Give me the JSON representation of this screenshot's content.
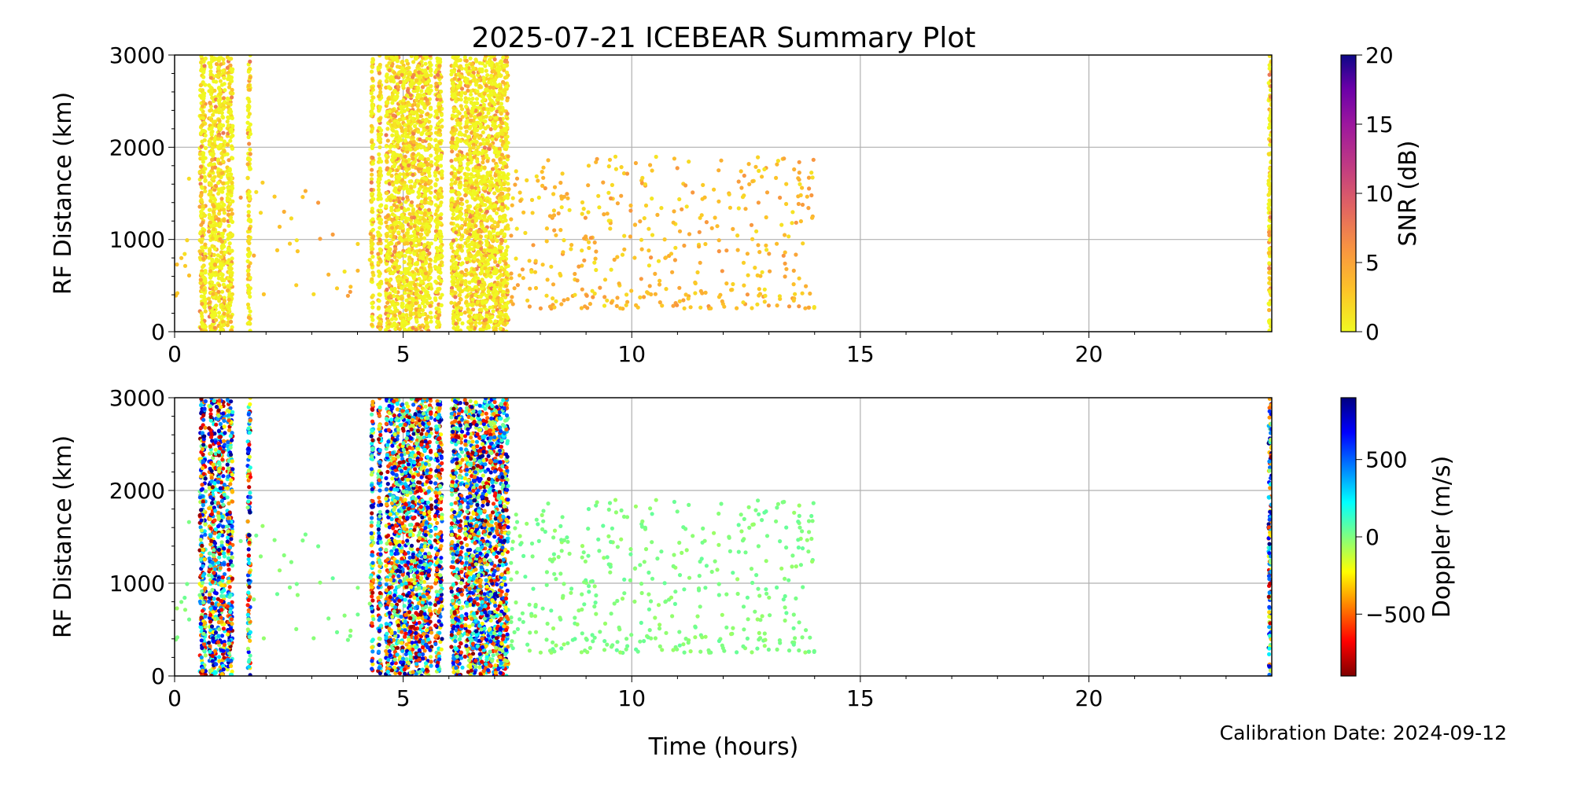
{
  "chart_data": [
    {
      "type": "scatter",
      "title": "2025-07-21 ICEBEAR Summary Plot",
      "xlabel": "",
      "ylabel": "RF Distance (km)",
      "xlim": [
        0,
        24
      ],
      "ylim": [
        0,
        3000
      ],
      "xticks": [
        "0",
        "5",
        "10",
        "15",
        "20"
      ],
      "yticks": [
        "0",
        "1000",
        "2000",
        "3000"
      ],
      "grid": true,
      "color_by": "SNR",
      "colorbar": {
        "label": "SNR (dB)",
        "range": [
          0,
          20
        ],
        "ticks": [
          "0",
          "5",
          "10",
          "15",
          "20"
        ],
        "colormap": "plasma_r"
      },
      "dense_bands_hours": [
        [
          0.55,
          0.68
        ],
        [
          0.75,
          0.92
        ],
        [
          0.95,
          1.1
        ],
        [
          1.15,
          1.27
        ],
        [
          1.6,
          1.66
        ],
        [
          4.3,
          4.35
        ],
        [
          4.45,
          4.52
        ],
        [
          4.62,
          5.62
        ],
        [
          5.7,
          5.85
        ],
        [
          6.05,
          6.3
        ],
        [
          6.35,
          7.1
        ],
        [
          7.1,
          7.3
        ],
        [
          23.93,
          24.0
        ]
      ],
      "sparse_region": {
        "hours": [
          7.3,
          14.0
        ],
        "range_km": [
          250,
          1900
        ],
        "count": 420
      },
      "early_sparse_region": {
        "hours": [
          0.0,
          4.3
        ],
        "range_km": [
          350,
          1700
        ],
        "count": 45
      },
      "typical_snr_db": [
        0,
        4
      ]
    },
    {
      "type": "scatter",
      "title": "",
      "xlabel": "Time (hours)",
      "ylabel": "RF Distance (km)",
      "xlim": [
        0,
        24
      ],
      "ylim": [
        0,
        3000
      ],
      "xticks": [
        "0",
        "5",
        "10",
        "15",
        "20"
      ],
      "yticks": [
        "0",
        "1000",
        "2000",
        "3000"
      ],
      "grid": true,
      "color_by": "Doppler",
      "colorbar": {
        "label": "Doppler (m/s)",
        "range": [
          -900,
          900
        ],
        "ticks": [
          "−500",
          "0",
          "500"
        ],
        "tick_values": [
          -500,
          0,
          500
        ],
        "colormap": "jet"
      },
      "sparse_region_doppler_ms": [
        -50,
        50
      ]
    }
  ],
  "footer": {
    "calibration": "Calibration Date: 2024-09-12"
  }
}
